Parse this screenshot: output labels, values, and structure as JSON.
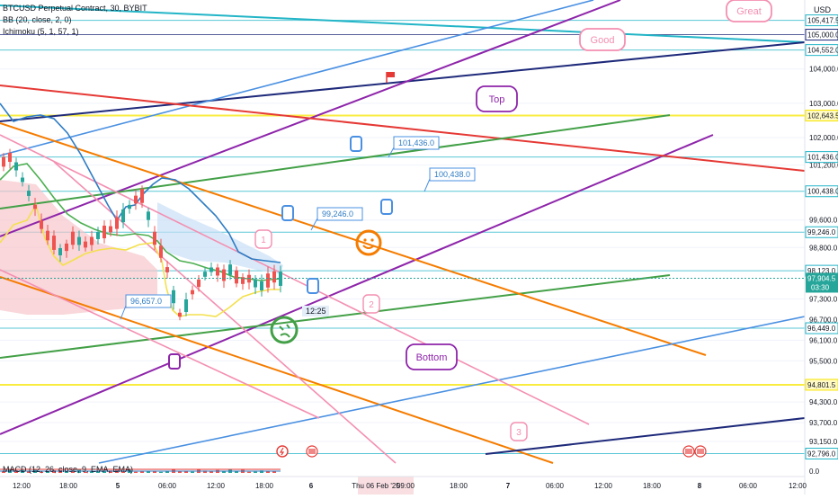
{
  "legend": {
    "symbol": "BTCUSD Perpetual Contract, 30, BYBIT",
    "bb": "BB (20, close, 2, 0)",
    "ichimoku": "Ichimoku (5, 1, 57, 1)",
    "macd": "MACD (12, 26, close, 9, EMA, EMA)",
    "currency": "USD"
  },
  "chart_data": {
    "type": "line",
    "title": "BTCUSD Perpetual Contract, 30, BYBIT",
    "ylim": [
      92600,
      105800
    ],
    "y_ticks": [
      {
        "value": 104000,
        "label": "104,000.0"
      },
      {
        "value": 103000,
        "label": "103,000.0"
      },
      {
        "value": 102000,
        "label": "102,000.0"
      },
      {
        "value": 101200,
        "label": "101,200.0"
      },
      {
        "value": 99600,
        "label": "99,600.0"
      },
      {
        "value": 98800,
        "label": "98,800.0"
      },
      {
        "value": 97300,
        "label": "97,300.0"
      },
      {
        "value": 96700,
        "label": "96,700.0"
      },
      {
        "value": 96100,
        "label": "96,100.0"
      },
      {
        "value": 95500,
        "label": "95,500.0"
      },
      {
        "value": 94300,
        "label": "94,300.0"
      },
      {
        "value": 93700,
        "label": "93,700.0"
      },
      {
        "value": 93150,
        "label": "93,150.0"
      }
    ],
    "price_levels": [
      {
        "value": 105417.5,
        "label": "105,417.5",
        "color": "#22b5c7"
      },
      {
        "value": 105000,
        "label": "105,000.0",
        "color": "#1e2a7a"
      },
      {
        "value": 104552,
        "label": "104,552.0",
        "color": "#22b5c7"
      },
      {
        "value": 102643.5,
        "label": "102,643.5",
        "color": "#f7e600"
      },
      {
        "value": 101436,
        "label": "101,436.0",
        "color": "#22b5c7"
      },
      {
        "value": 100438,
        "label": "100,438.0",
        "color": "#22b5c7"
      },
      {
        "value": 99246,
        "label": "99,246.0",
        "color": "#22b5c7"
      },
      {
        "value": 98123,
        "label": "98,123.0",
        "color": "#22b5c7"
      },
      {
        "value": 96449,
        "label": "96,449.0",
        "color": "#22b5c7"
      },
      {
        "value": 94801.5,
        "label": "94,801.5",
        "color": "#f7e600"
      },
      {
        "value": 92796,
        "label": "92,796.0",
        "color": "#22b5c7"
      }
    ],
    "current_price": {
      "value": 97904.5,
      "label": "97,904.5",
      "countdown": "03:30",
      "color": "#26a69a"
    },
    "x_ticks": [
      "12:00",
      "18:00",
      "5",
      "06:00",
      "12:00",
      "18:00",
      "6",
      "Thu 06 Feb '25",
      "09:00",
      "18:00",
      "7",
      "06:00",
      "12:00",
      "18:00",
      "8",
      "06:00",
      "12:00"
    ],
    "annotations": {
      "callouts": [
        "101,436.0",
        "100,438.0",
        "99,246.0",
        "96,657.0"
      ],
      "bubbles": [
        "Great",
        "Good",
        "Top",
        "Bottom"
      ],
      "numbered": [
        "1",
        "2",
        "3"
      ],
      "time_label": "12:25"
    },
    "macd_zero": "0.0"
  }
}
